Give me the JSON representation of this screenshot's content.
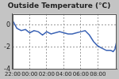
{
  "chart_data": {
    "type": "line",
    "title": "Outside Temperature (°C)",
    "x": [
      22,
      22.5,
      23,
      23.5,
      24,
      24.5,
      25,
      25.5,
      26,
      26.5,
      27,
      27.5,
      28,
      28.5,
      29,
      29.5,
      30,
      30.5,
      31,
      31.5,
      32,
      32.5,
      33,
      33.5,
      33.8,
      34,
      34.2
    ],
    "values": [
      0.4,
      -0.3,
      -0.5,
      -0.4,
      -0.7,
      -0.5,
      -0.6,
      -0.9,
      -0.6,
      -0.8,
      -0.7,
      -0.6,
      -0.7,
      -0.8,
      -0.8,
      -0.7,
      -0.6,
      -0.5,
      -0.9,
      -1.5,
      -1.9,
      -2.1,
      -2.3,
      -2.3,
      -2.4,
      -2.2,
      -1.5
    ],
    "color": "#3a62b4",
    "xlim": [
      22,
      34.2
    ],
    "xticks": [
      {
        "value": 22,
        "label": "22:00"
      },
      {
        "value": 24,
        "label": "00:00"
      },
      {
        "value": 26,
        "label": "02:00"
      },
      {
        "value": 28,
        "label": "04:00"
      },
      {
        "value": 30,
        "label": "06:00"
      },
      {
        "value": 32,
        "label": "08:00"
      }
    ],
    "ylim": [
      -4,
      1
    ],
    "yticks": [
      0,
      -2,
      -4
    ],
    "grid": true
  }
}
